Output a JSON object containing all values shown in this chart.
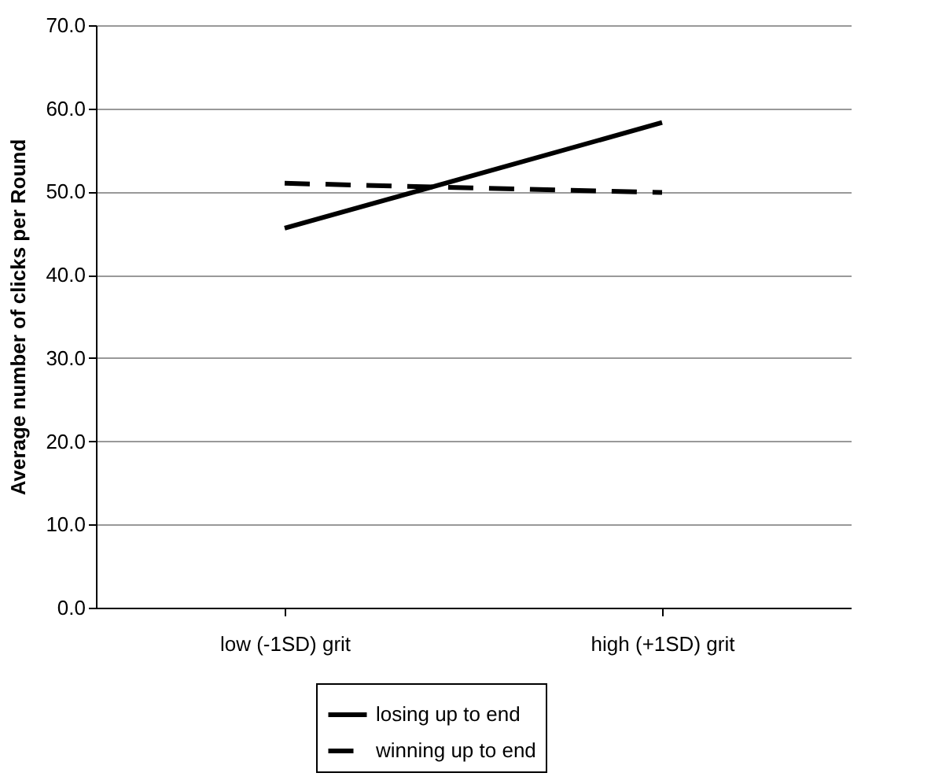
{
  "chart_data": {
    "type": "line",
    "ylabel": "Average number of clicks per Round",
    "categories": [
      "low (-1SD) grit",
      "high (+1SD) grit"
    ],
    "series": [
      {
        "name": "losing up to end",
        "color": "#000000",
        "line_style": "solid",
        "values": [
          45.6,
          58.3
        ]
      },
      {
        "name": "winning up to end",
        "color": "#000000",
        "line_style": "dashed",
        "values": [
          51.0,
          49.9
        ]
      }
    ],
    "ylim": [
      0,
      70
    ],
    "yticks": [
      {
        "value": 0,
        "label": "0.0"
      },
      {
        "value": 10,
        "label": "10.0"
      },
      {
        "value": 20,
        "label": "20.0"
      },
      {
        "value": 30,
        "label": "30.0"
      },
      {
        "value": 40,
        "label": "40.0"
      },
      {
        "value": 50,
        "label": "50.0"
      },
      {
        "value": 60,
        "label": "60.0"
      },
      {
        "value": 70,
        "label": "70.0"
      }
    ],
    "grid": "y",
    "legend": "bottom",
    "marker": "none"
  }
}
